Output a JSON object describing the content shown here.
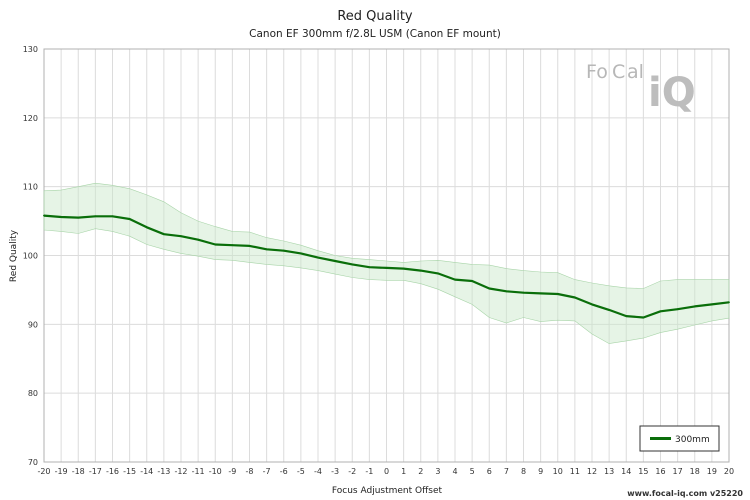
{
  "chart_data": {
    "type": "line",
    "title": "Red Quality",
    "subtitle": "Canon EF 300mm f/2.8L USM (Canon EF mount)",
    "xlabel": "Focus Adjustment Offset",
    "ylabel": "Red Quality",
    "xlim": [
      -20,
      20
    ],
    "ylim": [
      70,
      130
    ],
    "yticks": [
      70,
      80,
      90,
      100,
      110,
      120,
      130
    ],
    "x": [
      -20,
      -19,
      -18,
      -17,
      -16,
      -15,
      -14,
      -13,
      -12,
      -11,
      -10,
      -9,
      -8,
      -7,
      -6,
      -5,
      -4,
      -3,
      -2,
      -1,
      0,
      1,
      2,
      3,
      4,
      5,
      6,
      7,
      8,
      9,
      10,
      11,
      12,
      13,
      14,
      15,
      16,
      17,
      18,
      19,
      20
    ],
    "series": [
      {
        "name": "300mm",
        "color": "#0a6e0a",
        "values": [
          105.8,
          105.6,
          105.5,
          105.7,
          105.7,
          105.3,
          104.1,
          103.1,
          102.8,
          102.3,
          101.6,
          101.5,
          101.4,
          100.9,
          100.7,
          100.3,
          99.7,
          99.2,
          98.7,
          98.3,
          98.2,
          98.1,
          97.8,
          97.4,
          96.5,
          96.3,
          95.2,
          94.8,
          94.6,
          94.5,
          94.4,
          93.9,
          92.9,
          92.1,
          91.2,
          91.0,
          91.9,
          92.2,
          92.6,
          92.9,
          93.2
        ],
        "band_upper": [
          109.4,
          109.5,
          110.0,
          110.5,
          110.2,
          109.7,
          108.8,
          107.8,
          106.2,
          105.0,
          104.2,
          103.5,
          103.4,
          102.6,
          102.1,
          101.5,
          100.7,
          100.0,
          99.6,
          99.4,
          99.2,
          99.0,
          99.2,
          99.3,
          99.0,
          98.7,
          98.6,
          98.1,
          97.8,
          97.6,
          97.5,
          96.5,
          96.0,
          95.6,
          95.3,
          95.2,
          96.3,
          96.5,
          96.5,
          96.5,
          96.5
        ],
        "band_lower": [
          103.7,
          103.5,
          103.2,
          103.9,
          103.5,
          102.8,
          101.6,
          100.9,
          100.3,
          99.9,
          99.4,
          99.3,
          99.0,
          98.7,
          98.5,
          98.2,
          97.8,
          97.3,
          96.8,
          96.5,
          96.4,
          96.4,
          95.9,
          95.1,
          94.0,
          92.9,
          91.0,
          90.2,
          91.0,
          90.4,
          90.6,
          90.5,
          88.6,
          87.2,
          87.6,
          88.0,
          88.8,
          89.3,
          89.9,
          90.5,
          90.9
        ]
      }
    ],
    "legend": {
      "placement": "bottom-right",
      "entries": [
        "300mm"
      ]
    },
    "grid": true
  },
  "footer": {
    "text": "www.focal-iq.com  v25220"
  },
  "logo": {
    "part1": "Fo",
    "part2": "C",
    "part3": "al",
    "part4": "iQ"
  }
}
